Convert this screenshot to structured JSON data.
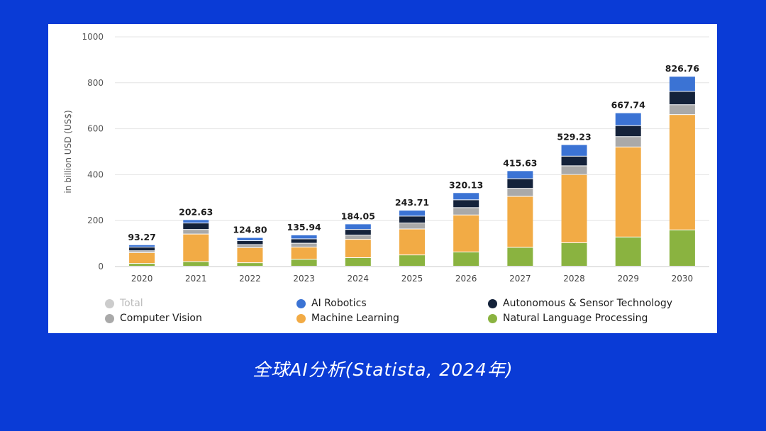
{
  "caption": "全球AI分析(Statista, 2024年)",
  "chart_data": {
    "type": "bar",
    "stacked": true,
    "ylabel": "in billion USD (US$)",
    "ylim": [
      0,
      1000
    ],
    "yticks": [
      0,
      200,
      400,
      600,
      800,
      1000
    ],
    "categories": [
      "2020",
      "2021",
      "2022",
      "2023",
      "2024",
      "2025",
      "2026",
      "2027",
      "2028",
      "2029",
      "2030"
    ],
    "totals": [
      93.27,
      202.63,
      124.8,
      135.94,
      184.05,
      243.71,
      320.13,
      415.63,
      529.23,
      667.74,
      826.76
    ],
    "total_labels": [
      "93.27",
      "202.63",
      "124.80",
      "135.94",
      "184.05",
      "243.71",
      "320.13",
      "415.63",
      "529.23",
      "667.74",
      "826.76"
    ],
    "series": [
      {
        "name": "Natural Language Processing",
        "color": "#8ab340",
        "values": [
          12,
          20,
          15,
          30,
          37,
          49,
          62,
          82,
          102,
          127,
          158
        ]
      },
      {
        "name": "Machine Learning",
        "color": "#f2ab45",
        "values": [
          47,
          120,
          66,
          53,
          80,
          113,
          161,
          222,
          297,
          392,
          502
        ]
      },
      {
        "name": "Computer Vision",
        "color": "#a9a9a9",
        "values": [
          8,
          20,
          13,
          17,
          18,
          26,
          32,
          35,
          38,
          45,
          43
        ]
      },
      {
        "name": "Autonomous & Sensor Technology",
        "color": "#14223a",
        "values": [
          16,
          28,
          17,
          19,
          25,
          30,
          34,
          42,
          42,
          48,
          58
        ]
      },
      {
        "name": "AI Robotics",
        "color": "#3b73d4",
        "values": [
          10.27,
          14.63,
          13.8,
          16.94,
          24.05,
          25.71,
          31.13,
          34.63,
          50.23,
          55.74,
          65.76
        ]
      }
    ],
    "legend": [
      {
        "name": "Total",
        "color": "#cccccc",
        "muted": true
      },
      {
        "name": "AI Robotics",
        "color": "#3b73d4"
      },
      {
        "name": "Autonomous & Sensor Technology",
        "color": "#14223a"
      },
      {
        "name": "Computer Vision",
        "color": "#a9a9a9"
      },
      {
        "name": "Machine Learning",
        "color": "#f2ab45"
      },
      {
        "name": "Natural Language Processing",
        "color": "#8ab340"
      }
    ]
  }
}
